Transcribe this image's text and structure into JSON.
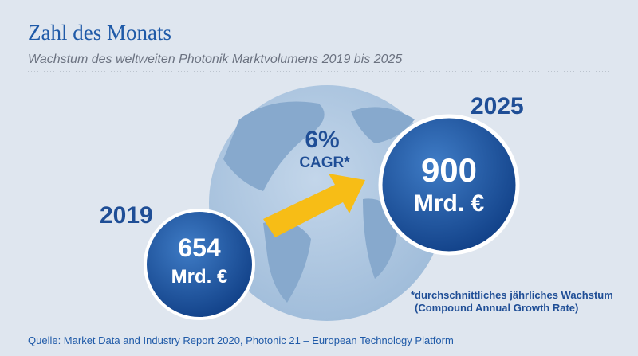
{
  "header": {
    "title": "Zahl des Monats",
    "subtitle": "Wachstum des weltweiten Photonik Marktvolumens 2019 bis 2025"
  },
  "start": {
    "year": "2019",
    "value": "654",
    "unit": "Mrd. €"
  },
  "end": {
    "year": "2025",
    "value": "900",
    "unit": "Mrd. €"
  },
  "growth": {
    "rate": "6%",
    "label": "CAGR*"
  },
  "footnote": {
    "line1": "*durchschnittliches jährliches Wachstum",
    "line2": "(Compound Annual Growth Rate)"
  },
  "source": "Quelle: Market Data and Industry Report 2020, Photonic 21 – European Technology Platform"
}
